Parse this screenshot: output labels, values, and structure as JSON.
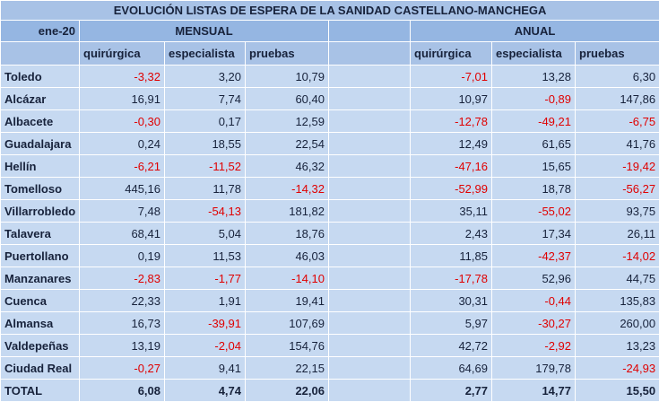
{
  "title": "EVOLUCIÓN LISTAS DE ESPERA DE LA SANIDAD CASTELLANO-MANCHEGA",
  "header": {
    "period": "ene-20",
    "mensual": "MENSUAL",
    "anual": "ANUAL",
    "columns": [
      "quirúrgica",
      "especialista",
      "pruebas"
    ]
  },
  "rows": [
    {
      "name": "Toledo",
      "mensual": [
        "-3,32",
        "3,20",
        "10,79"
      ],
      "anual": [
        "-7,01",
        "13,28",
        "6,30"
      ]
    },
    {
      "name": "Alcázar",
      "mensual": [
        "16,91",
        "7,74",
        "60,40"
      ],
      "anual": [
        "10,97",
        "-0,89",
        "147,86"
      ]
    },
    {
      "name": "Albacete",
      "mensual": [
        "-0,30",
        "0,17",
        "12,59"
      ],
      "anual": [
        "-12,78",
        "-49,21",
        "-6,75"
      ]
    },
    {
      "name": "Guadalajara",
      "mensual": [
        "0,24",
        "18,55",
        "22,54"
      ],
      "anual": [
        "12,49",
        "61,65",
        "41,76"
      ]
    },
    {
      "name": "Hellín",
      "mensual": [
        "-6,21",
        "-11,52",
        "46,32"
      ],
      "anual": [
        "-47,16",
        "15,65",
        "-19,42"
      ]
    },
    {
      "name": "Tomelloso",
      "mensual": [
        "445,16",
        "11,78",
        "-14,32"
      ],
      "anual": [
        "-52,99",
        "18,78",
        "-56,27"
      ]
    },
    {
      "name": "Villarrobledo",
      "mensual": [
        "7,48",
        "-54,13",
        "181,82"
      ],
      "anual": [
        "35,11",
        "-55,02",
        "93,75"
      ]
    },
    {
      "name": "Talavera",
      "mensual": [
        "68,41",
        "5,04",
        "18,76"
      ],
      "anual": [
        "2,43",
        "17,34",
        "26,11"
      ]
    },
    {
      "name": "Puertollano",
      "mensual": [
        "0,19",
        "11,53",
        "46,03"
      ],
      "anual": [
        "11,85",
        "-42,37",
        "-14,02"
      ]
    },
    {
      "name": "Manzanares",
      "mensual": [
        "-2,83",
        "-1,77",
        "-14,10"
      ],
      "anual": [
        "-17,78",
        "52,96",
        "44,75"
      ]
    },
    {
      "name": "Cuenca",
      "mensual": [
        "22,33",
        "1,91",
        "19,41"
      ],
      "anual": [
        "30,31",
        "-0,44",
        "135,83"
      ]
    },
    {
      "name": "Almansa",
      "mensual": [
        "16,73",
        "-39,91",
        "107,69"
      ],
      "anual": [
        "5,97",
        "-30,27",
        "260,00"
      ]
    },
    {
      "name": "Valdepeñas",
      "mensual": [
        "13,19",
        "-2,04",
        "154,76"
      ],
      "anual": [
        "42,72",
        "-2,92",
        "13,23"
      ]
    },
    {
      "name": "Ciudad Real",
      "mensual": [
        "-0,27",
        "9,41",
        "22,15"
      ],
      "anual": [
        "64,69",
        "179,78",
        "-24,93"
      ]
    }
  ],
  "total": {
    "name": "TOTAL",
    "mensual": [
      "6,08",
      "4,74",
      "22,06"
    ],
    "anual": [
      "2,77",
      "14,77",
      "15,50"
    ]
  }
}
